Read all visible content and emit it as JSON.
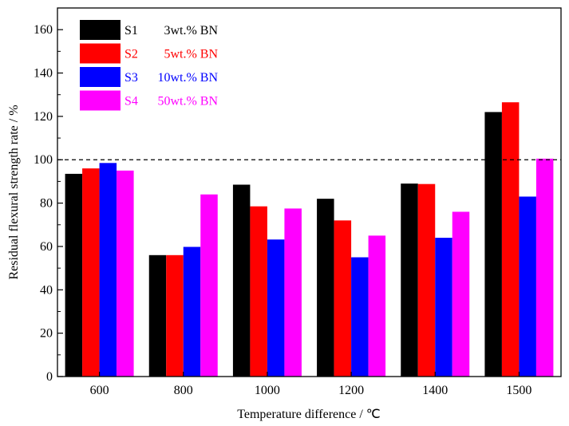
{
  "chart_data": {
    "type": "bar",
    "title": "",
    "xlabel": "Temperature difference / ℃",
    "ylabel": "Residual flexural strength rate / %",
    "categories": [
      "600",
      "800",
      "1000",
      "1200",
      "1400",
      "1500"
    ],
    "ylim": [
      0,
      170
    ],
    "yticks": [
      0,
      20,
      40,
      60,
      80,
      100,
      120,
      140,
      160
    ],
    "ytick_labels": [
      "0",
      "20",
      "40",
      "60",
      "80",
      "100",
      "120",
      "140",
      "160"
    ],
    "reference_line": {
      "y": 100,
      "style": "dashed"
    },
    "grid": false,
    "legend_position": "top-left",
    "series": [
      {
        "name": "S1",
        "label": "3wt.% BN",
        "color": "#000000",
        "values": [
          93.5,
          56,
          88.5,
          82,
          89,
          122
        ]
      },
      {
        "name": "S2",
        "label": "5wt.% BN",
        "color": "#ff0000",
        "values": [
          96,
          56,
          78.5,
          72,
          88.8,
          126.5
        ]
      },
      {
        "name": "S3",
        "label": "10wt.% BN",
        "color": "#0000ff",
        "values": [
          98.5,
          59.8,
          63.2,
          55,
          64,
          83
        ]
      },
      {
        "name": "S4",
        "label": "50wt.% BN",
        "color": "#ff00ff",
        "values": [
          95,
          84,
          77.5,
          65,
          76,
          100.5
        ]
      }
    ]
  }
}
